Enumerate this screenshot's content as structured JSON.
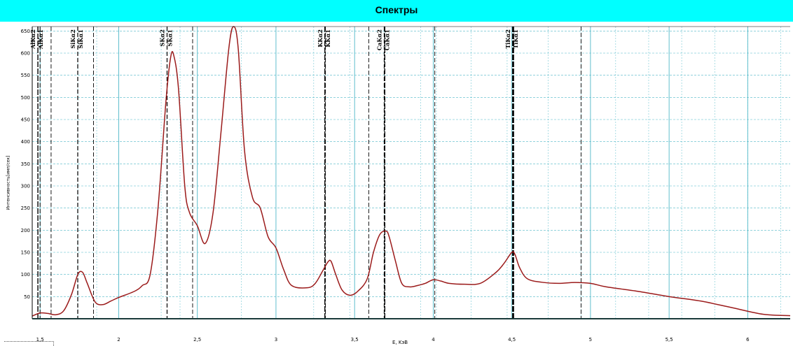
{
  "title": "Спектры",
  "colors": {
    "background": "#00ffff",
    "plot_background": "#ffffff",
    "grid": "#4fb8c8",
    "spectrum": "#9b1b1b",
    "marker": "#000000"
  },
  "chart_data": {
    "type": "line",
    "title": "Спектры",
    "xlabel": "E, KэВ",
    "ylabel": "Интенсивность[имп/сек]",
    "xlim": [
      1.45,
      6.27
    ],
    "ylim": [
      0,
      660
    ],
    "grid": true,
    "legend": "none",
    "x_ticks": [
      1.5,
      2,
      2.5,
      3,
      3.5,
      4,
      4.5,
      5,
      5.5,
      6
    ],
    "x_tick_labels": [
      "1,5",
      "2",
      "2,5",
      "3",
      "3,5",
      "4",
      "4,5",
      "5",
      "5,5",
      "6"
    ],
    "y_ticks": [
      50,
      100,
      150,
      200,
      250,
      300,
      350,
      400,
      450,
      500,
      550,
      600,
      650
    ],
    "y_tick_labels": [
      "50",
      "100",
      "150",
      "200",
      "250",
      "300",
      "350",
      "400",
      "450",
      "500",
      "550",
      "600",
      "650"
    ],
    "minor_grid_x": [
      1.74,
      1.86,
      2.27,
      2.39,
      2.78,
      3.24,
      3.47,
      3.69,
      3.92,
      4.02,
      4.24,
      4.47,
      4.51,
      4.73,
      4.94,
      5.16,
      5.37,
      5.58,
      5.79,
      6.0,
      6.21
    ],
    "element_lines": [
      {
        "label": "AlKα2",
        "x": 1.486,
        "style": "solid"
      },
      {
        "label": "AlKα1",
        "x": 1.5,
        "style": "dashed"
      },
      {
        "label": "SiKα2",
        "x": 1.739,
        "style": "dashed"
      },
      {
        "label": "SiKα1",
        "x": 1.74,
        "style": "dashed"
      },
      {
        "label": "SKα2",
        "x": 2.307,
        "style": "dashed"
      },
      {
        "label": "SKα1",
        "x": 2.308,
        "style": "dashed"
      },
      {
        "label": "KKα2",
        "x": 3.311,
        "style": "solid"
      },
      {
        "label": "KKα1",
        "x": 3.314,
        "style": "dashed"
      },
      {
        "label": "CaKα2",
        "x": 3.688,
        "style": "dashed"
      },
      {
        "label": "CaKα1",
        "x": 3.692,
        "style": "solid"
      },
      {
        "label": "TiKα2",
        "x": 4.505,
        "style": "solid"
      },
      {
        "label": "TiKα1",
        "x": 4.511,
        "style": "solid"
      }
    ],
    "extra_lines": [
      {
        "x": 1.57,
        "style": "dashed"
      },
      {
        "x": 1.84,
        "style": "dashed"
      },
      {
        "x": 2.47,
        "style": "dashed"
      },
      {
        "x": 3.59,
        "style": "dashed"
      },
      {
        "x": 4.01,
        "style": "dashed"
      },
      {
        "x": 4.94,
        "style": "dashed"
      }
    ],
    "series": [
      {
        "x": [
          1.45,
          1.5,
          1.55,
          1.6,
          1.65,
          1.7,
          1.74,
          1.77,
          1.8,
          1.85,
          1.9,
          1.95,
          2.0,
          2.1,
          2.15,
          2.2,
          2.25,
          2.3,
          2.33,
          2.35,
          2.38,
          2.42,
          2.45,
          2.5,
          2.55,
          2.6,
          2.65,
          2.7,
          2.73,
          2.76,
          2.8,
          2.85,
          2.9,
          2.95,
          3.0,
          3.05,
          3.1,
          3.2,
          3.25,
          3.3,
          3.33,
          3.35,
          3.38,
          3.42,
          3.47,
          3.52,
          3.58,
          3.62,
          3.66,
          3.7,
          3.72,
          3.76,
          3.8,
          3.85,
          3.9,
          3.95,
          4.0,
          4.05,
          4.1,
          4.2,
          4.3,
          4.4,
          4.45,
          4.5,
          4.52,
          4.55,
          4.6,
          4.7,
          4.8,
          4.9,
          5.0,
          5.1,
          5.3,
          5.5,
          5.7,
          5.9,
          6.1,
          6.27
        ],
        "y": [
          6,
          13,
          12,
          9,
          18,
          55,
          100,
          105,
          80,
          38,
          32,
          40,
          48,
          62,
          75,
          100,
          250,
          490,
          590,
          595,
          520,
          300,
          240,
          210,
          170,
          240,
          420,
          610,
          660,
          610,
          380,
          275,
          250,
          185,
          160,
          110,
          75,
          70,
          80,
          110,
          128,
          130,
          100,
          65,
          53,
          62,
          90,
          150,
          190,
          198,
          185,
          130,
          80,
          72,
          75,
          80,
          88,
          85,
          80,
          78,
          80,
          105,
          125,
          150,
          145,
          115,
          90,
          82,
          80,
          82,
          80,
          72,
          62,
          50,
          40,
          25,
          10,
          7
        ]
      }
    ]
  }
}
